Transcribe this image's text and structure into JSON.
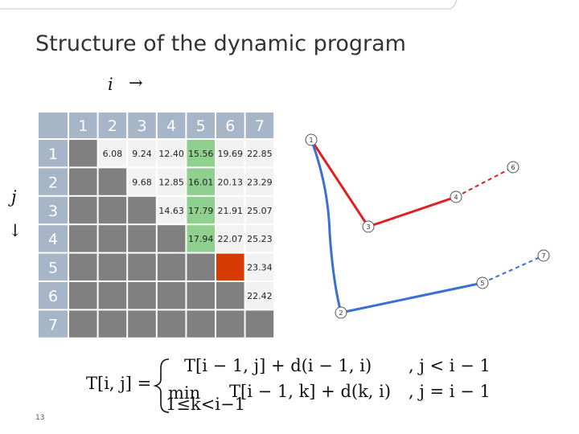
{
  "title": "Structure of the dynamic program",
  "axis_i": {
    "var": "i",
    "arrow": "→"
  },
  "axis_j": {
    "var": "j",
    "arrow": "↓"
  },
  "table": {
    "header": [
      "1",
      "2",
      "3",
      "4",
      "5",
      "6",
      "7"
    ],
    "rows": [
      {
        "label": "1",
        "cells": [
          null,
          "6.08",
          "9.24",
          "12.40",
          "15.56",
          "19.69",
          "22.85"
        ]
      },
      {
        "label": "2",
        "cells": [
          null,
          null,
          "9.68",
          "12.85",
          "16.01",
          "20.13",
          "23.29"
        ]
      },
      {
        "label": "3",
        "cells": [
          null,
          null,
          null,
          "14.63",
          "17.79",
          "21.91",
          "25.07"
        ]
      },
      {
        "label": "4",
        "cells": [
          null,
          null,
          null,
          null,
          "17.94",
          "22.07",
          "25.23"
        ]
      },
      {
        "label": "5",
        "cells": [
          null,
          null,
          null,
          null,
          null,
          null,
          "23.34"
        ]
      },
      {
        "label": "6",
        "cells": [
          null,
          null,
          null,
          null,
          null,
          null,
          "22.42"
        ]
      },
      {
        "label": "7",
        "cells": [
          null,
          null,
          null,
          null,
          null,
          null,
          null
        ]
      }
    ]
  },
  "nodes": [
    {
      "label": "1"
    },
    {
      "label": "2"
    },
    {
      "label": "3"
    },
    {
      "label": "4"
    },
    {
      "label": "5"
    },
    {
      "label": "6"
    },
    {
      "label": "7"
    }
  ],
  "formula": {
    "lhs": "T[i, j] =",
    "case1": "T[i − 1, j] + d(i − 1, i)",
    "cond1": ", j < i − 1",
    "min": "min",
    "sub": "1≤k<i−1",
    "case2": "T[i − 1, k] + d(k, i)",
    "cond2": ", j = i − 1"
  },
  "page_number": "13"
}
